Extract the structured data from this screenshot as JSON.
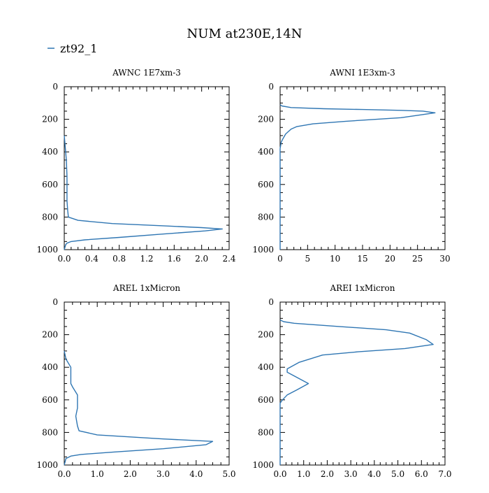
{
  "figure": {
    "title": "NUM at230E,14N",
    "legend_label": "zt92_1",
    "line_color": "#2f76b3",
    "background": "#ffffff"
  },
  "chart_data": [
    {
      "type": "line",
      "title": "AWNC  1E7xm-3",
      "xlim": [
        0,
        2.4
      ],
      "ylim": [
        1000,
        0
      ],
      "x_ticks": [
        "0.0",
        "0.4",
        "0.8",
        "1.2",
        "1.6",
        "2.0",
        "2.4"
      ],
      "x_tick_values": [
        0,
        0.4,
        0.8,
        1.2,
        1.6,
        2.0,
        2.4
      ],
      "y_ticks": [
        "0",
        "200",
        "400",
        "600",
        "800",
        "1000"
      ],
      "y_tick_values": [
        0,
        200,
        400,
        600,
        800,
        1000
      ],
      "series": [
        {
          "x": [
            0,
            0.01,
            0.03,
            0.04,
            0.04,
            0.04,
            0.05,
            0.06,
            0.2,
            0.7,
            1.5,
            2.0,
            2.3,
            2.05,
            1.4,
            0.8,
            0.3,
            0.1,
            0.04,
            0.02,
            0
          ],
          "y": [
            300,
            350,
            450,
            550,
            650,
            700,
            760,
            800,
            820,
            840,
            855,
            865,
            873,
            885,
            905,
            925,
            940,
            950,
            960,
            970,
            1000
          ]
        }
      ]
    },
    {
      "type": "line",
      "title": "AWNI  1E3xm-3",
      "xlim": [
        0,
        30
      ],
      "ylim": [
        1000,
        0
      ],
      "x_ticks": [
        "0",
        "5",
        "10",
        "15",
        "20",
        "25",
        "30"
      ],
      "x_tick_values": [
        0,
        5,
        10,
        15,
        20,
        25,
        30
      ],
      "y_ticks": [
        "0",
        "200",
        "400",
        "600",
        "800",
        "1000"
      ],
      "y_tick_values": [
        0,
        200,
        400,
        600,
        800,
        1000
      ],
      "series": [
        {
          "x": [
            0,
            0.3,
            2,
            8,
            15,
            22,
            26,
            28.2,
            22,
            12,
            6,
            3,
            2,
            1,
            0.5,
            0.2,
            0,
            0
          ],
          "y": [
            110,
            118,
            128,
            135,
            140,
            145,
            150,
            160,
            190,
            212,
            228,
            245,
            260,
            290,
            320,
            340,
            380,
            1000
          ]
        }
      ]
    },
    {
      "type": "line",
      "title": "AREL  1xMicron",
      "xlim": [
        0,
        5.0
      ],
      "ylim": [
        1000,
        0
      ],
      "x_ticks": [
        "0.0",
        "1.0",
        "2.0",
        "3.0",
        "4.0",
        "5.0"
      ],
      "x_tick_values": [
        0,
        1.0,
        2.0,
        3.0,
        4.0,
        5.0
      ],
      "y_ticks": [
        "0",
        "200",
        "400",
        "600",
        "800",
        "1000"
      ],
      "y_tick_values": [
        0,
        200,
        400,
        600,
        800,
        1000
      ],
      "series": [
        {
          "x": [
            0,
            0.05,
            0.2,
            0.2,
            0.25,
            0.4,
            0.4,
            0.35,
            0.4,
            0.45,
            1.0,
            3.0,
            4.5,
            4.3,
            3.0,
            1.5,
            0.5,
            0.2,
            0.05,
            0
          ],
          "y": [
            300,
            350,
            400,
            500,
            520,
            570,
            650,
            700,
            760,
            790,
            815,
            840,
            855,
            875,
            900,
            920,
            935,
            945,
            960,
            1000
          ]
        }
      ]
    },
    {
      "type": "line",
      "title": "AREI  1xMicron",
      "xlim": [
        0,
        7.0
      ],
      "ylim": [
        1000,
        0
      ],
      "x_ticks": [
        "0.0",
        "1.0",
        "2.0",
        "3.0",
        "4.0",
        "5.0",
        "6.0",
        "7.0"
      ],
      "x_tick_values": [
        0,
        1.0,
        2.0,
        3.0,
        4.0,
        5.0,
        6.0,
        7.0
      ],
      "y_ticks": [
        "0",
        "200",
        "400",
        "600",
        "800",
        "1000"
      ],
      "y_tick_values": [
        0,
        200,
        400,
        600,
        800,
        1000
      ],
      "series": [
        {
          "x": [
            0,
            0.15,
            0.6,
            2.5,
            4.5,
            5.5,
            6.2,
            6.5,
            5.3,
            3.3,
            1.8,
            0.8,
            0.3,
            0.3,
            1.2,
            0.7,
            0.3,
            0.1,
            0,
            0
          ],
          "y": [
            110,
            120,
            130,
            150,
            170,
            190,
            230,
            260,
            285,
            305,
            325,
            370,
            410,
            430,
            500,
            540,
            570,
            600,
            620,
            1000
          ]
        }
      ]
    }
  ]
}
